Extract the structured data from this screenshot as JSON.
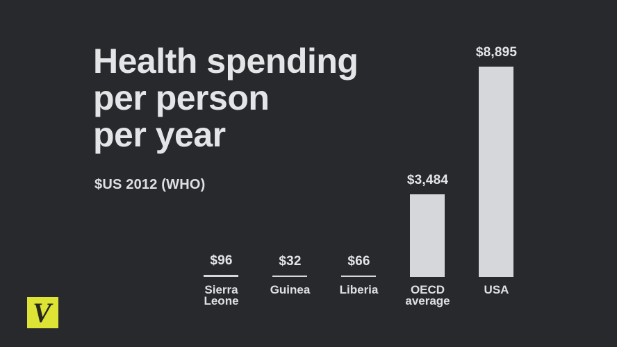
{
  "title": {
    "lines": [
      "Health spending",
      "per person",
      "per year"
    ],
    "full": "Health spending per person per year"
  },
  "subtitle": "$US 2012 (WHO)",
  "logo": {
    "letter": "V",
    "name": "vox-logo"
  },
  "colors": {
    "background": "#27292d",
    "bar": "#d5d7db",
    "title_text": "#e4e5e7",
    "label_text": "#dfe0e2",
    "logo_yellow": "#dde436",
    "logo_letter": "#26271f"
  },
  "chart_data": {
    "type": "bar",
    "title": "Health spending per person per year",
    "subtitle": "$US 2012 (WHO)",
    "categories": [
      "Sierra Leone",
      "Guinea",
      "Liberia",
      "OECD average",
      "USA"
    ],
    "values": [
      96,
      32,
      66,
      3484,
      8895
    ],
    "value_labels": [
      "$96",
      "$32",
      "$66",
      "$3,484",
      "$8,895"
    ],
    "xlabel": "",
    "ylabel": "Health spending per person per year ($US 2012)",
    "ylim": [
      0,
      8895
    ],
    "grid": false,
    "legend": false,
    "bar_color": "#d5d7db",
    "label_position": "above-bars"
  }
}
